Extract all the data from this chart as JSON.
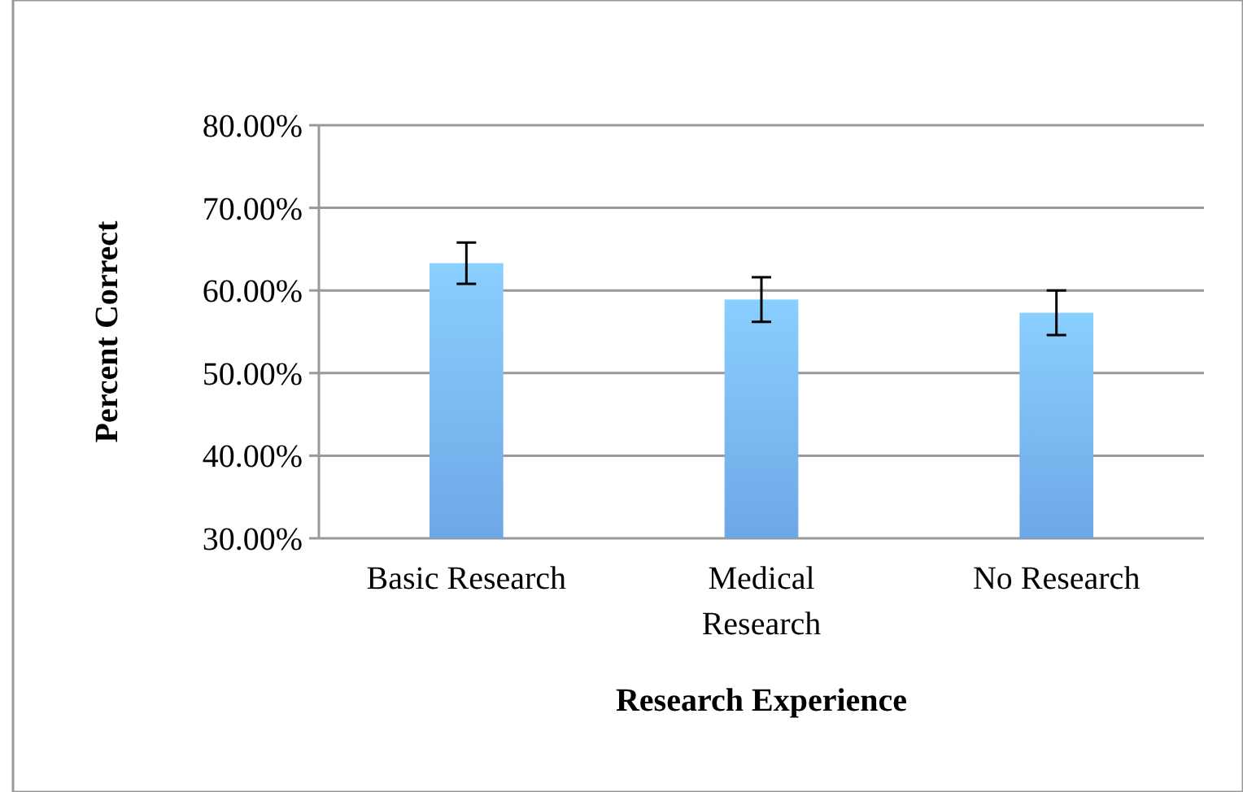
{
  "chart_data": {
    "type": "bar",
    "xlabel": "Research Experience",
    "ylabel": "Percent Correct",
    "categories": [
      "Basic Research",
      "Medical Research",
      "No Research"
    ],
    "values": [
      63.3,
      58.9,
      57.3
    ],
    "errors": [
      2.5,
      2.7,
      2.7
    ],
    "color": "#6fa7e6",
    "ylim": [
      30,
      80
    ],
    "yticks": [
      {
        "value": 30,
        "label": "30.00%"
      },
      {
        "value": 40,
        "label": "40.00%"
      },
      {
        "value": 50,
        "label": "50.00%"
      },
      {
        "value": 60,
        "label": "60.00%"
      },
      {
        "value": 70,
        "label": "70.00%"
      },
      {
        "value": 80,
        "label": "80.00%"
      }
    ],
    "grid": "y"
  }
}
